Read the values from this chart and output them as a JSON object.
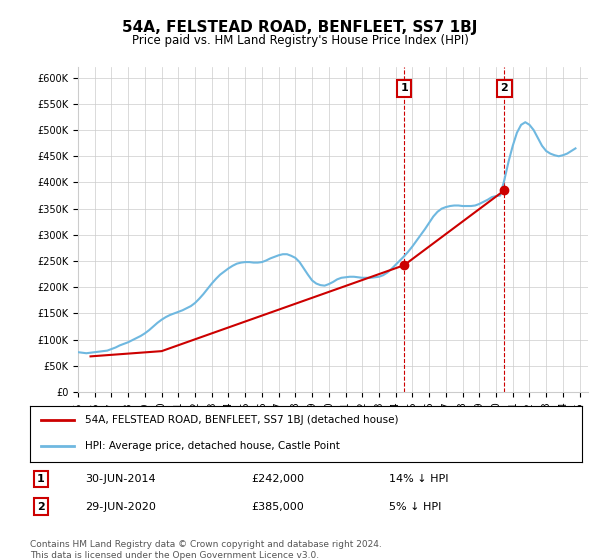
{
  "title": "54A, FELSTEAD ROAD, BENFLEET, SS7 1BJ",
  "subtitle": "Price paid vs. HM Land Registry's House Price Index (HPI)",
  "ylabel": "",
  "ylim": [
    0,
    620000
  ],
  "yticks": [
    0,
    50000,
    100000,
    150000,
    200000,
    250000,
    300000,
    350000,
    400000,
    450000,
    500000,
    550000,
    600000
  ],
  "xlim_start": 1995.0,
  "xlim_end": 2025.5,
  "xticks": [
    1995,
    1996,
    1997,
    1998,
    1999,
    2000,
    2001,
    2002,
    2003,
    2004,
    2005,
    2006,
    2007,
    2008,
    2009,
    2010,
    2011,
    2012,
    2013,
    2014,
    2015,
    2016,
    2017,
    2018,
    2019,
    2020,
    2021,
    2022,
    2023,
    2024,
    2025
  ],
  "hpi_color": "#6fb8e0",
  "price_color": "#cc0000",
  "vline_color": "#cc0000",
  "purchase1_date": 2014.5,
  "purchase1_price": 242000,
  "purchase2_date": 2020.5,
  "purchase2_price": 385000,
  "legend_label_price": "54A, FELSTEAD ROAD, BENFLEET, SS7 1BJ (detached house)",
  "legend_label_hpi": "HPI: Average price, detached house, Castle Point",
  "table_row1": "1     30-JUN-2014          £242,000          14% ↓ HPI",
  "table_row2": "2     29-JUN-2020          £385,000            5% ↓ HPI",
  "footer": "Contains HM Land Registry data © Crown copyright and database right 2024.\nThis data is licensed under the Open Government Licence v3.0.",
  "background_color": "#ffffff",
  "grid_color": "#cccccc",
  "hpi_data_x": [
    1995.0,
    1995.25,
    1995.5,
    1995.75,
    1996.0,
    1996.25,
    1996.5,
    1996.75,
    1997.0,
    1997.25,
    1997.5,
    1997.75,
    1998.0,
    1998.25,
    1998.5,
    1998.75,
    1999.0,
    1999.25,
    1999.5,
    1999.75,
    2000.0,
    2000.25,
    2000.5,
    2000.75,
    2001.0,
    2001.25,
    2001.5,
    2001.75,
    2002.0,
    2002.25,
    2002.5,
    2002.75,
    2003.0,
    2003.25,
    2003.5,
    2003.75,
    2004.0,
    2004.25,
    2004.5,
    2004.75,
    2005.0,
    2005.25,
    2005.5,
    2005.75,
    2006.0,
    2006.25,
    2006.5,
    2006.75,
    2007.0,
    2007.25,
    2007.5,
    2007.75,
    2008.0,
    2008.25,
    2008.5,
    2008.75,
    2009.0,
    2009.25,
    2009.5,
    2009.75,
    2010.0,
    2010.25,
    2010.5,
    2010.75,
    2011.0,
    2011.25,
    2011.5,
    2011.75,
    2012.0,
    2012.25,
    2012.5,
    2012.75,
    2013.0,
    2013.25,
    2013.5,
    2013.75,
    2014.0,
    2014.25,
    2014.5,
    2014.75,
    2015.0,
    2015.25,
    2015.5,
    2015.75,
    2016.0,
    2016.25,
    2016.5,
    2016.75,
    2017.0,
    2017.25,
    2017.5,
    2017.75,
    2018.0,
    2018.25,
    2018.5,
    2018.75,
    2019.0,
    2019.25,
    2019.5,
    2019.75,
    2020.0,
    2020.25,
    2020.5,
    2020.75,
    2021.0,
    2021.25,
    2021.5,
    2021.75,
    2022.0,
    2022.25,
    2022.5,
    2022.75,
    2023.0,
    2023.25,
    2023.5,
    2023.75,
    2024.0,
    2024.25,
    2024.5,
    2024.75
  ],
  "hpi_data_y": [
    76000,
    75000,
    74000,
    75000,
    76000,
    77000,
    78000,
    79000,
    82000,
    85000,
    89000,
    92000,
    95000,
    99000,
    103000,
    107000,
    112000,
    118000,
    125000,
    132000,
    138000,
    143000,
    147000,
    150000,
    153000,
    156000,
    160000,
    164000,
    170000,
    178000,
    187000,
    197000,
    207000,
    216000,
    224000,
    230000,
    236000,
    241000,
    245000,
    247000,
    248000,
    248000,
    247000,
    247000,
    248000,
    251000,
    255000,
    258000,
    261000,
    263000,
    263000,
    260000,
    256000,
    248000,
    236000,
    224000,
    213000,
    207000,
    204000,
    203000,
    206000,
    210000,
    215000,
    218000,
    219000,
    220000,
    220000,
    219000,
    218000,
    218000,
    218000,
    219000,
    220000,
    223000,
    228000,
    235000,
    243000,
    251000,
    259000,
    268000,
    278000,
    289000,
    300000,
    311000,
    323000,
    335000,
    344000,
    350000,
    353000,
    355000,
    356000,
    356000,
    355000,
    355000,
    355000,
    356000,
    359000,
    363000,
    367000,
    372000,
    374000,
    375000,
    405000,
    440000,
    470000,
    495000,
    510000,
    515000,
    510000,
    500000,
    485000,
    470000,
    460000,
    455000,
    452000,
    450000,
    452000,
    455000,
    460000,
    465000
  ],
  "price_data_x": [
    1995.75,
    2000.0,
    2014.5,
    2020.5
  ],
  "price_data_y": [
    68000,
    78000,
    242000,
    385000
  ]
}
